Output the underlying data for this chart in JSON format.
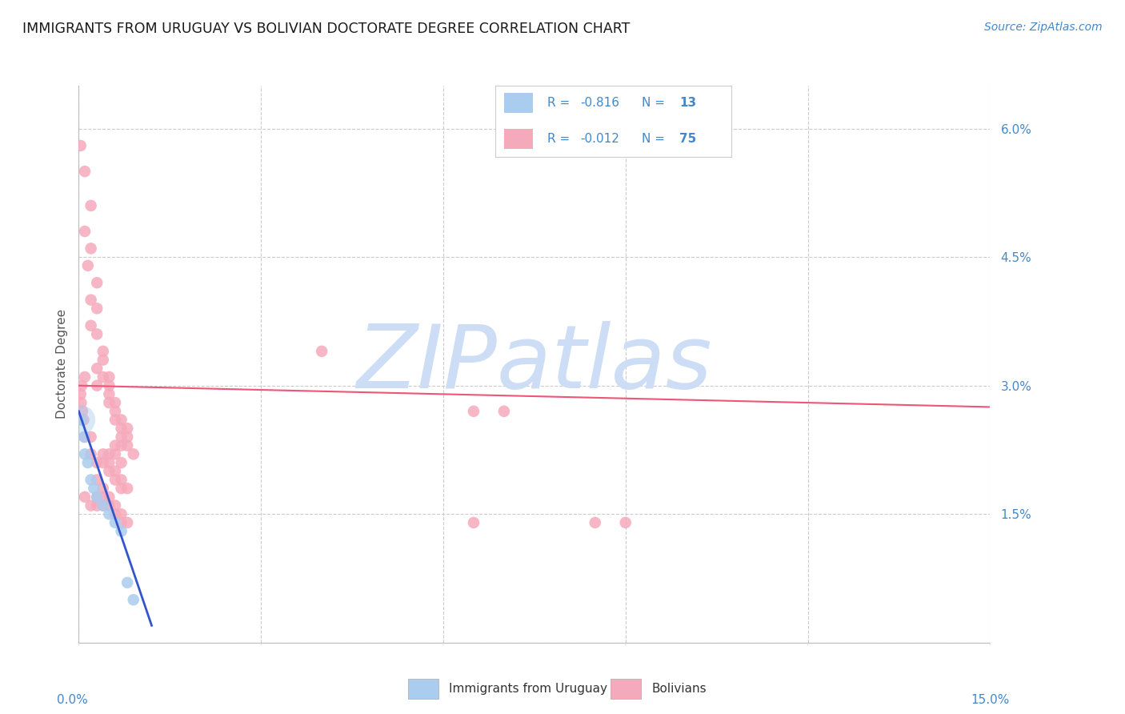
{
  "title": "IMMIGRANTS FROM URUGUAY VS BOLIVIAN DOCTORATE DEGREE CORRELATION CHART",
  "source": "Source: ZipAtlas.com",
  "ylabel": "Doctorate Degree",
  "xlim": [
    0.0,
    0.15
  ],
  "ylim": [
    0.0,
    0.065
  ],
  "grid_color": "#cccccc",
  "background_color": "#ffffff",
  "watermark": "ZIPatlas",
  "watermark_color": "#ccddf5",
  "uruguay_color": "#aaccee",
  "bolivia_color": "#f5aabb",
  "uruguay_line_color": "#3355cc",
  "bolivia_line_color": "#ee5577",
  "axis_label_color": "#4488cc",
  "uruguay_r": "-0.816",
  "uruguay_n": "13",
  "bolivia_r": "-0.012",
  "bolivia_n": "75",
  "legend_label_uruguay": "Immigrants from Uruguay",
  "legend_label_bolivia": "Bolivians",
  "uruguay_dots": [
    [
      0.0004,
      0.026
    ],
    [
      0.0009,
      0.024
    ],
    [
      0.001,
      0.022
    ],
    [
      0.0015,
      0.021
    ],
    [
      0.002,
      0.019
    ],
    [
      0.0025,
      0.018
    ],
    [
      0.003,
      0.017
    ],
    [
      0.004,
      0.016
    ],
    [
      0.005,
      0.015
    ],
    [
      0.006,
      0.014
    ],
    [
      0.007,
      0.013
    ],
    [
      0.008,
      0.007
    ],
    [
      0.009,
      0.005
    ]
  ],
  "bolivia_dots": [
    [
      0.0003,
      0.058
    ],
    [
      0.001,
      0.055
    ],
    [
      0.002,
      0.051
    ],
    [
      0.001,
      0.048
    ],
    [
      0.002,
      0.046
    ],
    [
      0.0015,
      0.044
    ],
    [
      0.003,
      0.042
    ],
    [
      0.002,
      0.04
    ],
    [
      0.003,
      0.039
    ],
    [
      0.002,
      0.037
    ],
    [
      0.003,
      0.036
    ],
    [
      0.004,
      0.034
    ],
    [
      0.004,
      0.033
    ],
    [
      0.003,
      0.032
    ],
    [
      0.004,
      0.031
    ],
    [
      0.005,
      0.031
    ],
    [
      0.005,
      0.03
    ],
    [
      0.003,
      0.03
    ],
    [
      0.005,
      0.029
    ],
    [
      0.006,
      0.028
    ],
    [
      0.005,
      0.028
    ],
    [
      0.006,
      0.027
    ],
    [
      0.007,
      0.026
    ],
    [
      0.006,
      0.026
    ],
    [
      0.007,
      0.025
    ],
    [
      0.008,
      0.025
    ],
    [
      0.007,
      0.024
    ],
    [
      0.008,
      0.024
    ],
    [
      0.006,
      0.023
    ],
    [
      0.007,
      0.023
    ],
    [
      0.008,
      0.023
    ],
    [
      0.009,
      0.022
    ],
    [
      0.004,
      0.022
    ],
    [
      0.005,
      0.022
    ],
    [
      0.006,
      0.022
    ],
    [
      0.004,
      0.021
    ],
    [
      0.005,
      0.021
    ],
    [
      0.007,
      0.021
    ],
    [
      0.005,
      0.02
    ],
    [
      0.006,
      0.02
    ],
    [
      0.007,
      0.019
    ],
    [
      0.006,
      0.019
    ],
    [
      0.008,
      0.018
    ],
    [
      0.007,
      0.018
    ],
    [
      0.001,
      0.031
    ],
    [
      0.0005,
      0.03
    ],
    [
      0.0003,
      0.029
    ],
    [
      0.0004,
      0.028
    ],
    [
      0.0006,
      0.027
    ],
    [
      0.0008,
      0.026
    ],
    [
      0.001,
      0.024
    ],
    [
      0.002,
      0.024
    ],
    [
      0.002,
      0.022
    ],
    [
      0.003,
      0.021
    ],
    [
      0.003,
      0.019
    ],
    [
      0.004,
      0.018
    ],
    [
      0.004,
      0.017
    ],
    [
      0.005,
      0.017
    ],
    [
      0.006,
      0.016
    ],
    [
      0.005,
      0.016
    ],
    [
      0.006,
      0.015
    ],
    [
      0.007,
      0.015
    ],
    [
      0.008,
      0.014
    ],
    [
      0.007,
      0.014
    ],
    [
      0.003,
      0.017
    ],
    [
      0.004,
      0.016
    ],
    [
      0.003,
      0.016
    ],
    [
      0.002,
      0.016
    ],
    [
      0.001,
      0.017
    ],
    [
      0.04,
      0.034
    ],
    [
      0.065,
      0.027
    ],
    [
      0.07,
      0.027
    ],
    [
      0.065,
      0.014
    ],
    [
      0.085,
      0.014
    ],
    [
      0.09,
      0.014
    ]
  ],
  "uruguay_line_x": [
    0.0,
    0.012
  ],
  "uruguay_line_y": [
    0.027,
    0.002
  ],
  "bolivia_line_x": [
    0.0,
    0.15
  ],
  "bolivia_line_y": [
    0.03,
    0.0275
  ]
}
